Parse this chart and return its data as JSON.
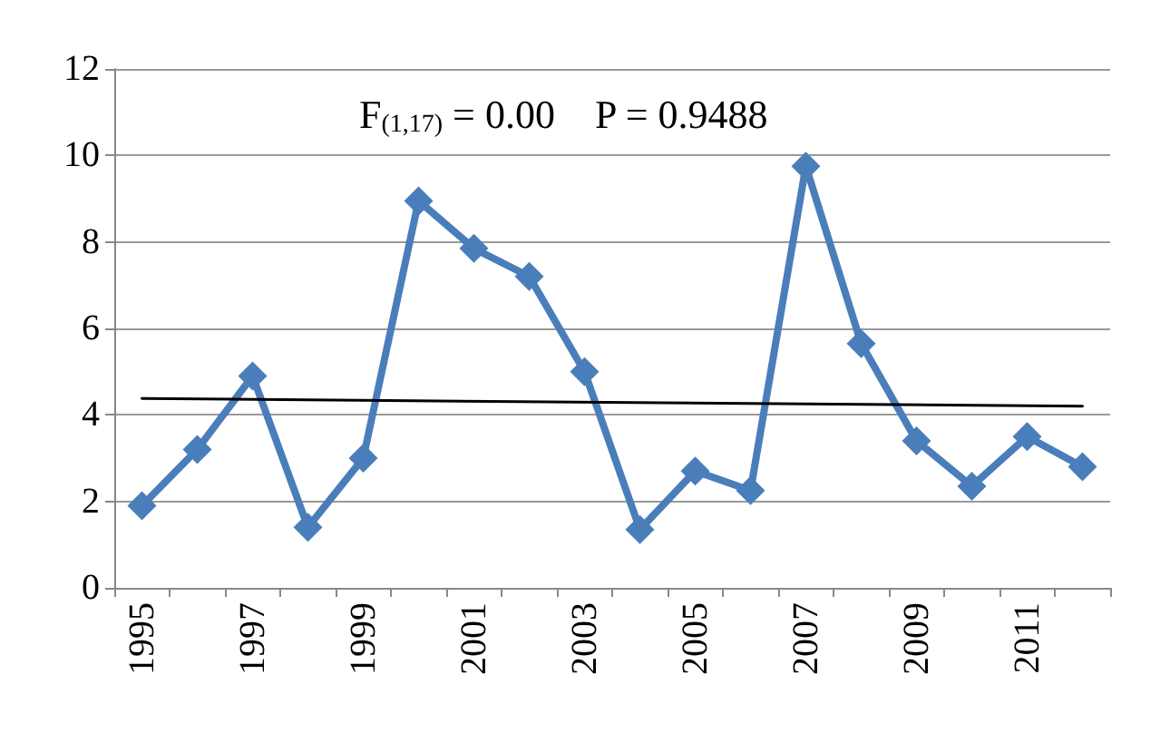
{
  "chart_data": {
    "type": "line",
    "categories": [
      "1995",
      null,
      "1997",
      null,
      "1999",
      null,
      "2001",
      null,
      "2003",
      null,
      "2005",
      null,
      "2007",
      null,
      "2009",
      null,
      "2011",
      null
    ],
    "series": [
      {
        "color": "#4a7ebb",
        "marker": "diamond",
        "values": [
          1.9,
          3.2,
          4.9,
          1.4,
          3.0,
          8.95,
          7.85,
          7.2,
          5.0,
          1.35,
          2.7,
          2.25,
          9.75,
          5.65,
          3.4,
          2.35,
          3.5,
          2.8
        ]
      },
      {
        "color": "#000000",
        "marker": "none",
        "values": [
          4.38,
          null,
          null,
          null,
          null,
          null,
          null,
          null,
          null,
          null,
          null,
          null,
          null,
          null,
          null,
          null,
          null,
          4.2
        ]
      }
    ],
    "ylim": [
      0,
      12
    ],
    "yticks": [
      0,
      2,
      4,
      6,
      8,
      10,
      12
    ],
    "grid": "y",
    "annotations": [
      "F$_{(1,17)}$ = 0.00    P = 0.9488"
    ]
  }
}
